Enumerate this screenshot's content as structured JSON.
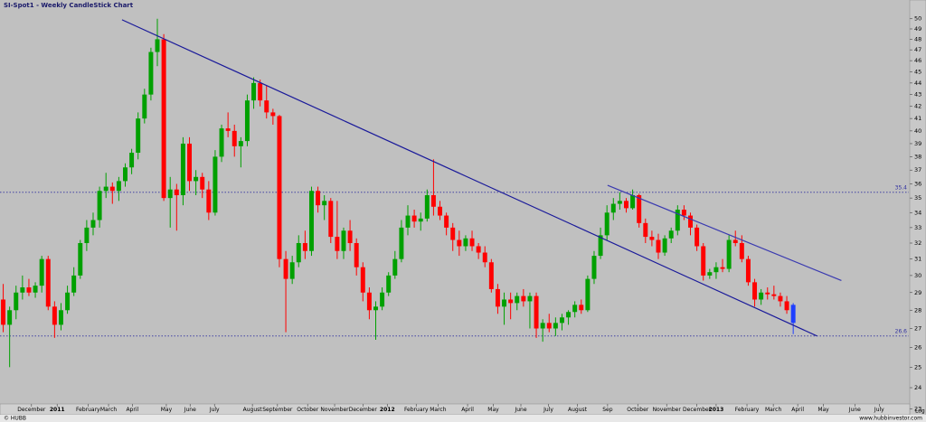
{
  "chart_data": {
    "type": "candlestick",
    "title": "SI-Spot1 - Weekly CandleStick Chart",
    "footer_left": "© HUBB",
    "footer_right": "www.hubbinvestor.com",
    "scale_label": "Log",
    "log_scale": true,
    "ylim": [
      22.7,
      51.9
    ],
    "yticks": [
      23,
      24,
      25,
      26,
      27,
      28,
      29,
      30,
      31,
      32,
      33,
      34,
      35,
      36,
      37,
      38,
      39,
      40,
      41,
      42,
      43,
      44,
      45,
      46,
      47,
      48,
      49,
      50
    ],
    "xlim": [
      -0.5,
      141
    ],
    "xticks": [
      {
        "value": 4.4,
        "label": "December"
      },
      {
        "value": 8.4,
        "label": "2011"
      },
      {
        "value": 13.2,
        "label": "February"
      },
      {
        "value": 16.4,
        "label": "March"
      },
      {
        "value": 20.1,
        "label": "April"
      },
      {
        "value": 25.4,
        "label": "May"
      },
      {
        "value": 29.1,
        "label": "June"
      },
      {
        "value": 32.9,
        "label": "July"
      },
      {
        "value": 38.8,
        "label": "August"
      },
      {
        "value": 42.7,
        "label": "September"
      },
      {
        "value": 47.4,
        "label": "October"
      },
      {
        "value": 51.6,
        "label": "November"
      },
      {
        "value": 56.0,
        "label": "December"
      },
      {
        "value": 59.8,
        "label": "2012"
      },
      {
        "value": 64.3,
        "label": "February"
      },
      {
        "value": 67.7,
        "label": "March"
      },
      {
        "value": 72.3,
        "label": "April"
      },
      {
        "value": 76.3,
        "label": "May"
      },
      {
        "value": 80.6,
        "label": "June"
      },
      {
        "value": 84.9,
        "label": "July"
      },
      {
        "value": 89.4,
        "label": "August"
      },
      {
        "value": 94.1,
        "label": "Sep"
      },
      {
        "value": 98.8,
        "label": "October"
      },
      {
        "value": 103.3,
        "label": "November"
      },
      {
        "value": 108.0,
        "label": "December"
      },
      {
        "value": 111.0,
        "label": "2013"
      },
      {
        "value": 115.8,
        "label": "February"
      },
      {
        "value": 119.9,
        "label": "March"
      },
      {
        "value": 123.7,
        "label": "April"
      },
      {
        "value": 127.7,
        "label": "May"
      },
      {
        "value": 132.6,
        "label": "June"
      },
      {
        "value": 136.4,
        "label": "July"
      }
    ],
    "up_color": "#00a000",
    "down_color": "#ff0000",
    "last_color": "#1f3fff",
    "open": [
      28.6,
      27.2,
      28.0,
      29.0,
      29.3,
      29.0,
      29.4,
      31.0,
      28.2,
      27.2,
      28.0,
      29.0,
      30.0,
      32.0,
      33.0,
      33.5,
      35.5,
      35.8,
      35.5,
      36.2,
      37.2,
      38.3,
      41.0,
      43.0,
      46.8,
      48.0,
      35.0,
      35.6,
      35.2,
      39.0,
      36.2,
      36.5,
      35.6,
      34.0,
      38.0,
      40.2,
      40.0,
      38.8,
      39.2,
      42.5,
      44.0,
      42.5,
      41.5,
      41.2,
      31.0,
      29.8,
      30.8,
      32.0,
      31.5,
      35.5,
      34.5,
      34.8,
      32.4,
      31.5,
      32.8,
      32.0,
      30.5,
      29.0,
      28.0,
      28.2,
      29.0,
      30.0,
      31.0,
      33.0,
      33.8,
      33.4,
      33.6,
      35.2,
      34.4,
      33.8,
      33.0,
      32.2,
      31.8,
      32.3,
      31.8,
      31.4,
      30.8,
      29.2,
      28.2,
      28.6,
      28.4,
      28.8,
      28.5,
      28.8,
      27.0,
      27.3,
      27.0,
      27.3,
      27.6,
      27.9,
      28.3,
      28.0,
      29.8,
      31.2,
      32.5,
      34.0,
      34.6,
      34.8,
      34.3,
      35.2,
      33.3,
      32.4,
      32.2,
      31.4,
      32.3,
      32.8,
      34.2,
      33.8,
      33.0,
      31.8,
      30.0,
      30.2,
      30.5,
      30.4,
      32.2,
      32.0,
      31.0,
      29.6,
      28.6,
      29.0,
      28.9,
      28.8,
      28.5,
      27.3
    ],
    "high": [
      29.5,
      28.2,
      29.4,
      30.0,
      29.8,
      29.6,
      31.2,
      31.2,
      28.5,
      28.4,
      29.4,
      30.5,
      32.2,
      33.5,
      34.0,
      35.8,
      36.8,
      36.1,
      36.5,
      37.5,
      38.6,
      41.5,
      43.5,
      47.2,
      50.0,
      48.5,
      36.5,
      36.0,
      39.5,
      39.5,
      37.0,
      36.8,
      36.2,
      38.5,
      40.5,
      41.5,
      40.5,
      39.5,
      43.0,
      44.5,
      44.3,
      43.8,
      41.8,
      41.3,
      31.5,
      31.2,
      32.5,
      32.8,
      35.8,
      35.8,
      35.2,
      35.0,
      34.8,
      33.0,
      33.5,
      32.3,
      30.8,
      29.3,
      28.5,
      29.3,
      30.2,
      31.5,
      33.5,
      34.5,
      34.2,
      34.0,
      35.6,
      37.8,
      34.8,
      34.0,
      33.3,
      32.8,
      32.5,
      32.8,
      32.0,
      31.8,
      31.0,
      29.5,
      29.0,
      29.0,
      29.0,
      29.2,
      29.0,
      29.0,
      27.5,
      27.8,
      27.6,
      27.8,
      28.0,
      28.5,
      28.6,
      30.0,
      31.5,
      33.0,
      34.5,
      35.0,
      35.4,
      35.0,
      35.6,
      35.3,
      33.6,
      32.8,
      32.6,
      32.5,
      33.0,
      34.5,
      34.5,
      34.0,
      33.2,
      32.0,
      30.4,
      30.8,
      31.0,
      32.5,
      32.8,
      32.5,
      31.2,
      29.8,
      29.2,
      29.3,
      29.4,
      29.0,
      28.8,
      28.4
    ],
    "low": [
      26.8,
      25.0,
      27.5,
      28.6,
      28.8,
      28.7,
      29.0,
      28.0,
      26.5,
      26.9,
      27.8,
      28.8,
      29.8,
      31.5,
      32.5,
      33.0,
      35.0,
      34.6,
      34.8,
      35.8,
      36.7,
      37.8,
      40.6,
      42.5,
      45.5,
      34.8,
      33.0,
      32.8,
      34.5,
      35.5,
      35.2,
      35.0,
      33.5,
      33.8,
      37.6,
      39.5,
      38.0,
      37.2,
      38.8,
      41.8,
      42.0,
      41.0,
      40.5,
      30.5,
      26.8,
      29.5,
      30.5,
      31.0,
      31.2,
      34.0,
      33.5,
      32.0,
      31.0,
      31.0,
      31.5,
      30.0,
      28.5,
      27.5,
      26.4,
      28.0,
      28.8,
      29.8,
      30.8,
      32.5,
      33.0,
      32.8,
      33.4,
      33.8,
      33.5,
      32.5,
      31.5,
      31.2,
      31.5,
      31.5,
      31.0,
      30.5,
      29.0,
      27.8,
      27.2,
      27.5,
      28.0,
      28.2,
      27.0,
      26.5,
      26.3,
      26.8,
      26.6,
      26.9,
      27.2,
      27.6,
      27.8,
      27.9,
      29.5,
      31.0,
      32.2,
      33.5,
      34.2,
      34.0,
      34.2,
      33.0,
      32.0,
      31.8,
      31.0,
      31.2,
      32.0,
      32.5,
      33.5,
      32.5,
      31.5,
      29.7,
      29.8,
      29.8,
      30.2,
      30.2,
      31.8,
      30.8,
      29.4,
      28.2,
      28.3,
      28.6,
      28.6,
      28.2,
      27.8,
      26.7
    ],
    "close": [
      27.2,
      28.0,
      29.0,
      29.3,
      29.0,
      29.4,
      31.0,
      28.2,
      27.2,
      28.0,
      29.0,
      30.0,
      32.0,
      33.0,
      33.5,
      35.5,
      35.8,
      35.5,
      36.2,
      37.2,
      38.3,
      41.0,
      43.0,
      46.8,
      48.0,
      35.0,
      35.6,
      35.2,
      39.0,
      36.2,
      36.5,
      35.6,
      34.0,
      38.0,
      40.2,
      40.0,
      38.8,
      39.2,
      42.5,
      44.0,
      42.5,
      41.5,
      41.2,
      31.0,
      29.8,
      30.8,
      32.0,
      31.5,
      35.5,
      34.5,
      34.8,
      32.4,
      31.5,
      32.8,
      32.0,
      30.5,
      29.0,
      28.0,
      28.2,
      29.0,
      30.0,
      31.0,
      33.0,
      33.8,
      33.4,
      33.6,
      35.2,
      34.4,
      33.8,
      33.0,
      32.2,
      31.8,
      32.3,
      31.8,
      31.4,
      30.8,
      29.2,
      28.2,
      28.6,
      28.4,
      28.8,
      28.5,
      28.8,
      27.0,
      27.3,
      27.0,
      27.3,
      27.6,
      27.9,
      28.3,
      28.0,
      29.8,
      31.2,
      32.5,
      34.0,
      34.6,
      34.8,
      34.3,
      35.2,
      33.3,
      32.4,
      32.2,
      31.4,
      32.3,
      32.8,
      34.2,
      33.8,
      33.0,
      31.8,
      30.0,
      30.2,
      30.5,
      30.4,
      32.2,
      32.0,
      31.0,
      29.6,
      28.6,
      29.0,
      28.9,
      28.8,
      28.5,
      28.0,
      28.3
    ],
    "hlines": [
      {
        "value": 35.4,
        "label": "35.4"
      },
      {
        "value": 26.6,
        "label": "26.6"
      }
    ],
    "hline_color": "#3030a0",
    "trendlines": [
      {
        "x": [
          18.5,
          126.7
        ],
        "y": [
          49.9,
          26.6
        ],
        "color": "#1a1a9a"
      },
      {
        "x": [
          94.1,
          130.5
        ],
        "y": [
          35.9,
          29.7
        ],
        "color": "#3a3ab0"
      }
    ]
  }
}
